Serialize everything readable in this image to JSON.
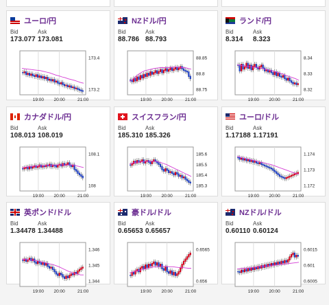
{
  "cards": [
    {
      "title": "ユーロ/円",
      "flag": "eu",
      "bid_label": "Bid",
      "ask_label": "Ask",
      "bid": "173.077",
      "ask": "173.081",
      "yticks": [
        "173.4",
        "173.2"
      ],
      "xticks": [
        "19:00",
        "20:00",
        "21:00"
      ],
      "candles": [
        50,
        48,
        55,
        52,
        57,
        54,
        58,
        60,
        56,
        62,
        59,
        64,
        61,
        66,
        63,
        70,
        68,
        72,
        69,
        75,
        73,
        78,
        80,
        77,
        82,
        85,
        84,
        88,
        86,
        90,
        89,
        93,
        92,
        95,
        97,
        99,
        100
      ],
      "ma": [
        40,
        41,
        42,
        43,
        44,
        45,
        46,
        48,
        50,
        52,
        55,
        58,
        60,
        63,
        65,
        68,
        70,
        72,
        75,
        78,
        80
      ]
    },
    {
      "title": "NZドル/円",
      "flag": "nz",
      "bid_label": "Bid",
      "ask_label": "Ask",
      "bid": "88.786",
      "ask": "88.793",
      "yticks": [
        "88.85",
        "88.8",
        "88.75"
      ],
      "xticks": [
        "19:00",
        "20:00",
        "21:00"
      ],
      "candles": [
        70,
        74,
        66,
        72,
        62,
        68,
        58,
        64,
        55,
        60,
        52,
        57,
        48,
        54,
        50,
        45,
        52,
        47,
        42,
        50,
        44,
        40,
        46,
        42,
        38,
        44,
        40,
        36,
        42,
        38,
        34,
        40,
        44,
        46,
        48,
        60,
        66
      ],
      "ma": [
        75,
        70,
        62,
        55,
        50,
        46,
        44,
        42,
        40,
        39,
        38,
        38,
        38,
        37,
        37,
        36,
        37,
        38,
        38,
        40,
        42
      ]
    },
    {
      "title": "ランド/円",
      "flag": "za",
      "bid_label": "Bid",
      "ask_label": "Ask",
      "bid": "8.314",
      "ask": "8.323",
      "yticks": [
        "8.34",
        "8.33",
        "8.32"
      ],
      "xticks": [
        "19:00",
        "20:00",
        "21:00"
      ],
      "candles": [
        30,
        45,
        28,
        40,
        35,
        25,
        38,
        30,
        42,
        33,
        28,
        36,
        40,
        34,
        30,
        38,
        45,
        42,
        48,
        44,
        50,
        55,
        48,
        58,
        52,
        60,
        62,
        58,
        66,
        70,
        65,
        72,
        76,
        80,
        78,
        82,
        80
      ],
      "ma": [
        30,
        32,
        33,
        34,
        35,
        36,
        37,
        38,
        40,
        42,
        44,
        46,
        48,
        50,
        53,
        56,
        59,
        62,
        65,
        68,
        72
      ]
    },
    {
      "title": "カナダドル/円",
      "flag": "ca",
      "bid_label": "Bid",
      "ask_label": "Ask",
      "bid": "108.013",
      "ask": "108.019",
      "yticks": [
        "108.1",
        "108"
      ],
      "xticks": [
        "19:00",
        "20:00",
        "21:00"
      ],
      "candles": [
        50,
        48,
        46,
        50,
        44,
        48,
        45,
        42,
        46,
        44,
        40,
        45,
        42,
        44,
        40,
        42,
        38,
        44,
        40,
        42,
        45,
        40,
        38,
        42,
        36,
        40,
        38,
        34,
        40,
        44,
        40,
        52,
        56,
        62,
        66,
        70,
        74
      ],
      "ma": [
        48,
        47,
        46,
        45,
        44,
        44,
        43,
        43,
        42,
        42,
        42,
        41,
        41,
        41,
        41,
        41,
        41,
        42,
        44,
        46,
        48
      ]
    },
    {
      "title": "スイスフラン/円",
      "flag": "ch",
      "bid_label": "Bid",
      "ask_label": "Ask",
      "bid": "185.310",
      "ask": "185.326",
      "yticks": [
        "185.6",
        "185.5",
        "185.4",
        "185.3"
      ],
      "xticks": [
        "19:00",
        "20:00",
        "21:00"
      ],
      "candles": [
        40,
        36,
        30,
        34,
        28,
        32,
        30,
        26,
        34,
        30,
        28,
        32,
        36,
        30,
        26,
        30,
        34,
        38,
        44,
        52,
        56,
        50,
        54,
        60,
        58,
        62,
        66,
        60,
        64,
        70,
        68,
        74,
        72,
        78,
        82,
        86,
        88
      ],
      "ma": [
        38,
        36,
        34,
        33,
        32,
        32,
        31,
        31,
        31,
        32,
        34,
        37,
        40,
        44,
        48,
        52,
        56,
        60,
        64,
        68,
        72
      ]
    },
    {
      "title": "ユーロ/ドル",
      "flag": "us",
      "bid_label": "Bid",
      "ask_label": "Ask",
      "bid": "1.17188",
      "ask": "1.17191",
      "yticks": [
        "1.174",
        "1.173",
        "1.172"
      ],
      "xticks": [
        "19:00",
        "20:00",
        "21:00"
      ],
      "candles": [
        20,
        24,
        22,
        26,
        24,
        28,
        26,
        30,
        28,
        32,
        30,
        34,
        36,
        34,
        38,
        40,
        42,
        44,
        46,
        48,
        50,
        54,
        58,
        62,
        66,
        70,
        72,
        74,
        76,
        74,
        72,
        70,
        68,
        66,
        64,
        62,
        60
      ],
      "ma": [
        18,
        20,
        22,
        24,
        26,
        28,
        30,
        32,
        34,
        36,
        38,
        40,
        43,
        46,
        49,
        52,
        55,
        58,
        61,
        64,
        66
      ]
    },
    {
      "title": "英ポンド/ドル",
      "flag": "gb",
      "bid_label": "Bid",
      "ask_label": "Ask",
      "bid": "1.34478",
      "ask": "1.34488",
      "yticks": [
        "1.346",
        "1.345",
        "1.344"
      ],
      "xticks": [
        "19:00",
        "20:00",
        "21:00"
      ],
      "candles": [
        40,
        36,
        42,
        38,
        34,
        40,
        36,
        44,
        48,
        42,
        46,
        50,
        46,
        52,
        48,
        56,
        60,
        58,
        64,
        70,
        76,
        80,
        74,
        78,
        84,
        88,
        82,
        86,
        80,
        76,
        78,
        72,
        74,
        68,
        64,
        60,
        58
      ],
      "ma": [
        38,
        38,
        39,
        40,
        41,
        42,
        44,
        46,
        48,
        50,
        52,
        55,
        58,
        62,
        66,
        70,
        73,
        76,
        78,
        80,
        80
      ]
    },
    {
      "title": "豪ドル/ドル",
      "flag": "au",
      "bid_label": "Bid",
      "ask_label": "Ask",
      "bid": "0.65653",
      "ask": "0.65657",
      "yticks": [
        "0.6565",
        "0.656"
      ],
      "xticks": [
        "19:00",
        "20:00",
        "21:00"
      ],
      "candles": [
        80,
        72,
        76,
        68,
        64,
        70,
        60,
        56,
        62,
        52,
        58,
        50,
        54,
        48,
        44,
        52,
        46,
        56,
        50,
        62,
        66,
        58,
        70,
        74,
        68,
        78,
        72,
        80,
        76,
        70,
        60,
        50,
        42,
        36,
        30,
        24,
        20
      ],
      "ma": [
        74,
        72,
        70,
        68,
        66,
        64,
        62,
        60,
        58,
        58,
        57,
        57,
        57,
        58,
        58,
        59,
        60,
        60,
        61,
        62,
        62
      ]
    },
    {
      "title": "NZドル/ドル",
      "flag": "nz",
      "bid_label": "Bid",
      "ask_label": "Ask",
      "bid": "0.60110",
      "ask": "0.60124",
      "yticks": [
        "0.6015",
        "0.601",
        "0.6005"
      ],
      "xticks": [
        "19:00",
        "20:00",
        "21:00"
      ],
      "candles": [
        70,
        72,
        66,
        70,
        64,
        68,
        62,
        66,
        60,
        64,
        58,
        62,
        56,
        60,
        54,
        58,
        52,
        56,
        50,
        54,
        48,
        52,
        46,
        50,
        44,
        48,
        42,
        46,
        40,
        44,
        38,
        30,
        24,
        20,
        30,
        26,
        28
      ],
      "ma": [
        64,
        63,
        62,
        62,
        61,
        60,
        59,
        58,
        57,
        56,
        56,
        55,
        54,
        53,
        52,
        51,
        50,
        49,
        48,
        47,
        46
      ]
    }
  ]
}
